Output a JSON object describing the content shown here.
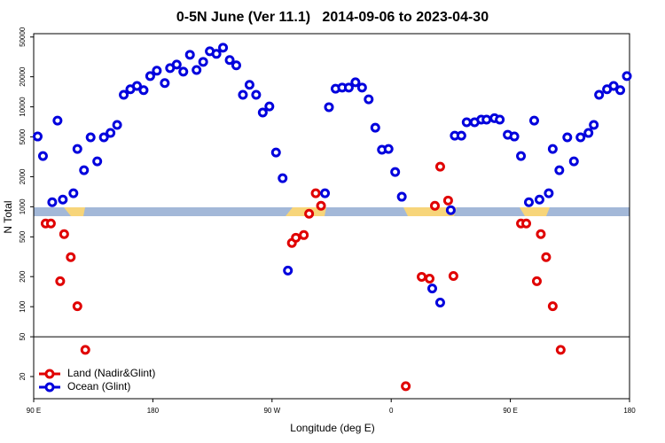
{
  "chart_data": {
    "type": "scatter",
    "title": "0-5N June (Ver 11.1)   2014-09-06 to 2023-04-30",
    "xlabel": "Longitude (deg E)",
    "ylabel": "N Total",
    "xlim": [
      90,
      540
    ],
    "xticks": [
      {
        "value": 90,
        "label": "90 E"
      },
      180,
      {
        "value": 270,
        "label": "90 W"
      },
      {
        "value": 360,
        "label": "0"
      },
      {
        "value": 450,
        "label": "90 E"
      },
      {
        "value": 540,
        "label": "180"
      }
    ],
    "ylim": [
      12,
      54000
    ],
    "ylog": true,
    "yticks": [
      20,
      50,
      100,
      200,
      500,
      1000,
      2000,
      5000,
      10000,
      20000,
      50000
    ],
    "hline": 50,
    "legend": "bottom-left",
    "series": [
      {
        "name": "Land (Nadir&Glint)",
        "color": "#e00000",
        "x": [
          99,
          103,
          110,
          113,
          118,
          123,
          129,
          285,
          288,
          294,
          298,
          303,
          307,
          371,
          383,
          389,
          393,
          397,
          403,
          407,
          458,
          462,
          470,
          473,
          477,
          482,
          488
        ],
        "values": [
          680,
          680,
          180,
          532,
          313,
          101,
          37,
          434,
          490,
          521,
          851,
          1365,
          1023,
          16,
          199,
          191,
          1023,
          2520,
          1155,
          203,
          680,
          680,
          180,
          532,
          313,
          101,
          37
        ]
      },
      {
        "name": "Ocean (Glint)",
        "color": "#0000dd",
        "x": [
          93,
          97,
          104,
          108,
          112,
          120,
          123,
          128,
          133,
          138,
          143,
          148,
          153,
          158,
          163,
          168,
          173,
          178,
          183,
          189,
          193,
          198,
          203,
          208,
          213,
          218,
          223,
          228,
          233,
          238,
          243,
          248,
          253,
          258,
          263,
          268,
          273,
          278,
          282,
          310,
          313,
          318,
          323,
          328,
          333,
          338,
          343,
          348,
          353,
          358,
          363,
          368,
          391,
          397,
          405,
          408,
          413,
          417,
          423,
          428,
          432,
          438,
          442,
          448,
          453,
          458,
          464,
          468,
          472,
          479,
          482,
          487,
          493,
          498,
          503,
          509,
          513,
          517,
          523,
          528,
          533,
          538
        ],
        "values": [
          5050,
          3220,
          1110,
          7290,
          1180,
          1365,
          3790,
          2320,
          4950,
          2850,
          4950,
          5480,
          6590,
          13200,
          15000,
          16200,
          14700,
          20300,
          23000,
          17300,
          24400,
          26500,
          22500,
          33200,
          23400,
          28200,
          36000,
          33900,
          39100,
          29400,
          26000,
          13200,
          16600,
          13200,
          8770,
          10100,
          3490,
          1930,
          230,
          1365,
          9930,
          15200,
          15600,
          15600,
          17600,
          15600,
          11900,
          6190,
          3720,
          3790,
          2230,
          1260,
          152,
          110,
          925,
          5150,
          5150,
          7010,
          7010,
          7450,
          7450,
          7700,
          7450,
          5260,
          5050,
          3220,
          1110,
          7290,
          1180,
          1365,
          3790,
          2320,
          4950,
          2850,
          4950,
          5480,
          6590,
          13200,
          15000,
          16200,
          14700,
          20300
        ]
      }
    ]
  }
}
